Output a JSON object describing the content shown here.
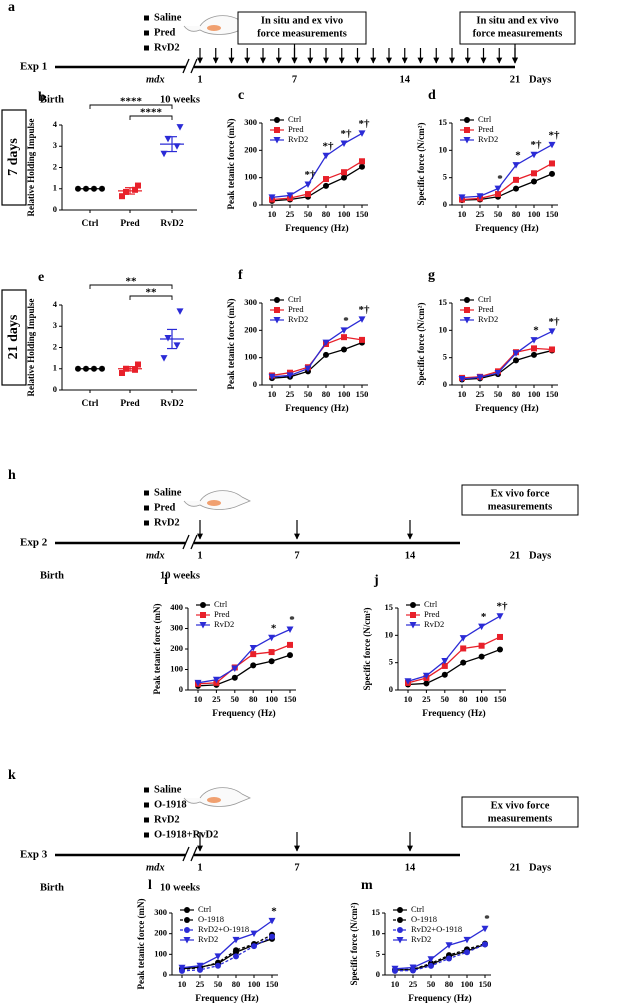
{
  "side_labels": [
    "7 days",
    "21 days"
  ],
  "timelines": [
    {
      "label": "a",
      "treatments": [
        "Saline",
        "Pred",
        "RvD2"
      ],
      "experiment": "Exp 1",
      "strain": "mdx",
      "days": [
        "1",
        "7",
        "14",
        "21"
      ],
      "unit": "Days",
      "birth": "Birth",
      "age": "10 weeks",
      "boxes": [
        [
          "In situ and ex vivo",
          "force measurements"
        ],
        [
          "In situ and ex vivo",
          "force measurements"
        ]
      ]
    },
    {
      "label": "h",
      "treatments": [
        "Saline",
        "Pred",
        "RvD2"
      ],
      "experiment": "Exp 2",
      "strain": "mdx",
      "days": [
        "1",
        "7",
        "14",
        "21"
      ],
      "unit": "Days",
      "birth": "Birth",
      "age": "10 weeks",
      "boxes": [
        [
          "Ex vivo force",
          "measurements"
        ]
      ]
    },
    {
      "label": "k",
      "treatments": [
        "Saline",
        "O-1918",
        "RvD2",
        "O-1918+RvD2"
      ],
      "experiment": "Exp 3",
      "strain": "mdx",
      "days": [
        "1",
        "7",
        "14",
        "21"
      ],
      "unit": "Days",
      "birth": "Birth",
      "age": "10 weeks",
      "boxes": [
        [
          "Ex vivo force",
          "measurements"
        ]
      ]
    }
  ],
  "chart_data": [
    {
      "type": "dot",
      "label": "b",
      "ylabel": "Relative Holding Impulse",
      "categories": [
        "Ctrl",
        "Pred",
        "RvD2"
      ],
      "colors": [
        "#000000",
        "#e8202a",
        "#2b2bd6"
      ],
      "markers": [
        "circle",
        "square",
        "triangle-down"
      ],
      "points": [
        [
          1,
          1,
          1,
          1
        ],
        [
          0.65,
          0.95,
          0.85,
          1.15
        ],
        [
          2.65,
          3.0,
          3.35,
          3.9
        ]
      ],
      "mean": [
        1,
        0.9,
        3.1
      ],
      "sem": [
        0,
        0.15,
        0.35
      ],
      "ylim": [
        0,
        4
      ],
      "yticks": [
        0,
        1,
        2,
        3,
        4
      ],
      "significance": [
        "****",
        "****"
      ]
    },
    {
      "type": "line",
      "label": "c",
      "ylabel": "Peak tetanic force (mN)",
      "xlabel": "Frequency (Hz)",
      "categories": [
        "10",
        "25",
        "50",
        "80",
        "100",
        "150"
      ],
      "ylim": [
        0,
        300
      ],
      "yticks": [
        0,
        100,
        200,
        300
      ],
      "series": [
        {
          "name": "Ctrl",
          "color": "#000000",
          "marker": "circle",
          "values": [
            15,
            20,
            30,
            70,
            100,
            140
          ]
        },
        {
          "name": "Pred",
          "color": "#e8202a",
          "marker": "square",
          "values": [
            20,
            25,
            40,
            95,
            120,
            160
          ]
        },
        {
          "name": "RvD2",
          "color": "#2b2bd6",
          "marker": "triangle-down",
          "values": [
            28,
            35,
            75,
            180,
            225,
            262
          ]
        }
      ],
      "annotations": [
        null,
        null,
        "*†",
        "*†",
        "*†",
        "*†"
      ]
    },
    {
      "type": "line",
      "label": "d",
      "ylabel": "Specific force (N/cm²)",
      "xlabel": "Frequency (Hz)",
      "categories": [
        "10",
        "25",
        "50",
        "80",
        "100",
        "150"
      ],
      "ylim": [
        0,
        15
      ],
      "yticks": [
        0,
        5,
        10,
        15
      ],
      "series": [
        {
          "name": "Ctrl",
          "color": "#000000",
          "marker": "circle",
          "values": [
            0.9,
            1,
            1.5,
            3,
            4.3,
            5.7
          ]
        },
        {
          "name": "Pred",
          "color": "#e8202a",
          "marker": "square",
          "values": [
            1,
            1.2,
            2,
            4.6,
            5.8,
            7.6
          ]
        },
        {
          "name": "RvD2",
          "color": "#2b2bd6",
          "marker": "triangle-down",
          "values": [
            1.4,
            1.6,
            3,
            7.3,
            9.2,
            11
          ]
        }
      ],
      "annotations": [
        null,
        null,
        "*",
        "*",
        "*†",
        "*†"
      ]
    },
    {
      "type": "dot",
      "label": "e",
      "ylabel": "Relative Holding Impulse",
      "categories": [
        "Ctrl",
        "Pred",
        "RvD2"
      ],
      "colors": [
        "#000000",
        "#e8202a",
        "#2b2bd6"
      ],
      "markers": [
        "circle",
        "square",
        "triangle-down"
      ],
      "points": [
        [
          1,
          1,
          1,
          1
        ],
        [
          0.8,
          0.95,
          1.0,
          1.2
        ],
        [
          1.5,
          2.1,
          2.45,
          3.7
        ]
      ],
      "mean": [
        1,
        1.0,
        2.4
      ],
      "sem": [
        0,
        0.1,
        0.45
      ],
      "ylim": [
        0,
        4
      ],
      "yticks": [
        0,
        1,
        2,
        3,
        4
      ],
      "significance": [
        "**",
        "**"
      ]
    },
    {
      "type": "line",
      "label": "f",
      "ylabel": "Peak tetanic force (mN)",
      "xlabel": "Frequency (Hz)",
      "categories": [
        "10",
        "25",
        "50",
        "80",
        "100",
        "150"
      ],
      "ylim": [
        0,
        300
      ],
      "yticks": [
        0,
        100,
        200,
        300
      ],
      "series": [
        {
          "name": "Ctrl",
          "color": "#000000",
          "marker": "circle",
          "values": [
            25,
            30,
            50,
            110,
            130,
            155
          ]
        },
        {
          "name": "Pred",
          "color": "#e8202a",
          "marker": "square",
          "values": [
            35,
            45,
            65,
            150,
            175,
            165
          ]
        },
        {
          "name": "RvD2",
          "color": "#2b2bd6",
          "marker": "triangle-down",
          "values": [
            30,
            35,
            60,
            155,
            200,
            240
          ]
        }
      ],
      "annotations": [
        null,
        null,
        null,
        null,
        "*",
        "*†"
      ]
    },
    {
      "type": "line",
      "label": "g",
      "ylabel": "Specific force (N/cm²)",
      "xlabel": "Frequency (Hz)",
      "categories": [
        "10",
        "25",
        "50",
        "80",
        "100",
        "150"
      ],
      "ylim": [
        0,
        15
      ],
      "yticks": [
        0,
        5,
        10,
        15
      ],
      "series": [
        {
          "name": "Ctrl",
          "color": "#000000",
          "marker": "circle",
          "values": [
            1,
            1.2,
            2,
            4.5,
            5.5,
            6.3
          ]
        },
        {
          "name": "Pred",
          "color": "#e8202a",
          "marker": "square",
          "values": [
            1.3,
            1.5,
            2.5,
            6,
            6.7,
            6.5
          ]
        },
        {
          "name": "RvD2",
          "color": "#2b2bd6",
          "marker": "triangle-down",
          "values": [
            1.1,
            1.4,
            2.2,
            5.8,
            8.2,
            9.8
          ]
        }
      ],
      "annotations": [
        null,
        null,
        null,
        null,
        "*",
        "*†"
      ]
    },
    {
      "type": "line",
      "label": "i",
      "ylabel": "Peak tetanic force (mN)",
      "xlabel": "Frequency (Hz)",
      "categories": [
        "10",
        "25",
        "50",
        "80",
        "100",
        "150"
      ],
      "ylim": [
        0,
        400
      ],
      "yticks": [
        0,
        100,
        200,
        300,
        400
      ],
      "series": [
        {
          "name": "Ctrl",
          "color": "#000000",
          "marker": "circle",
          "values": [
            20,
            25,
            60,
            120,
            140,
            170
          ]
        },
        {
          "name": "Pred",
          "color": "#e8202a",
          "marker": "square",
          "values": [
            30,
            35,
            110,
            175,
            185,
            220
          ]
        },
        {
          "name": "RvD2",
          "color": "#2b2bd6",
          "marker": "triangle-down",
          "values": [
            35,
            50,
            105,
            205,
            255,
            295
          ]
        }
      ],
      "annotations": [
        null,
        null,
        null,
        null,
        "*",
        "*"
      ]
    },
    {
      "type": "line",
      "label": "j",
      "ylabel": "Specific force (N/cm²)",
      "xlabel": "Frequency (Hz)",
      "categories": [
        "10",
        "25",
        "50",
        "80",
        "100",
        "150"
      ],
      "ylim": [
        0,
        15
      ],
      "yticks": [
        0,
        5,
        10,
        15
      ],
      "series": [
        {
          "name": "Ctrl",
          "color": "#000000",
          "marker": "circle",
          "values": [
            1,
            1.2,
            2.8,
            5,
            6.1,
            7.4
          ]
        },
        {
          "name": "Pred",
          "color": "#e8202a",
          "marker": "square",
          "values": [
            1.3,
            2.2,
            4.4,
            7.6,
            8.1,
            9.7
          ]
        },
        {
          "name": "RvD2",
          "color": "#2b2bd6",
          "marker": "triangle-down",
          "values": [
            1.6,
            2.6,
            5.3,
            9.5,
            11.6,
            13.5
          ]
        }
      ],
      "annotations": [
        null,
        null,
        null,
        null,
        "*",
        "*†"
      ]
    },
    {
      "type": "line",
      "label": "l",
      "ylabel": "Peak tetanic force (mN)",
      "xlabel": "Frequency (Hz)",
      "categories": [
        "10",
        "25",
        "50",
        "80",
        "100",
        "150"
      ],
      "ylim": [
        0,
        300
      ],
      "yticks": [
        0,
        100,
        200,
        300
      ],
      "series": [
        {
          "name": "Ctrl",
          "color": "#000000",
          "marker": "circle",
          "values": [
            30,
            38,
            55,
            110,
            145,
            175
          ]
        },
        {
          "name": "O-1918",
          "color": "#000000",
          "marker": "circle",
          "dash": true,
          "values": [
            28,
            35,
            60,
            120,
            150,
            195
          ]
        },
        {
          "name": "RvD2+O-1918",
          "color": "#2b2bd6",
          "marker": "circle",
          "dash": true,
          "values": [
            20,
            25,
            45,
            90,
            140,
            185
          ]
        },
        {
          "name": "RvD2",
          "color": "#2b2bd6",
          "marker": "triangle-down",
          "values": [
            35,
            45,
            90,
            170,
            200,
            262
          ]
        }
      ],
      "annotations": [
        null,
        null,
        null,
        null,
        null,
        "*"
      ]
    },
    {
      "type": "line",
      "label": "m",
      "ylabel": "Specific force (N/cm²)",
      "xlabel": "Frequency (Hz)",
      "categories": [
        "10",
        "25",
        "50",
        "80",
        "100",
        "150"
      ],
      "ylim": [
        0,
        15
      ],
      "yticks": [
        0,
        5,
        10,
        15
      ],
      "series": [
        {
          "name": "Ctrl",
          "color": "#000000",
          "marker": "circle",
          "values": [
            1.2,
            1.3,
            2.5,
            4.5,
            5.8,
            7.4
          ]
        },
        {
          "name": "O-1918",
          "color": "#000000",
          "marker": "circle",
          "dash": true,
          "values": [
            1.2,
            1.4,
            2.8,
            4.8,
            6.2,
            7.6
          ]
        },
        {
          "name": "RvD2+O-1918",
          "color": "#2b2bd6",
          "marker": "circle",
          "dash": true,
          "values": [
            1,
            1.1,
            2.2,
            4,
            5.5,
            7.4
          ]
        },
        {
          "name": "RvD2",
          "color": "#2b2bd6",
          "marker": "triangle-down",
          "values": [
            1.5,
            1.8,
            3.8,
            7.2,
            8.5,
            11.2
          ]
        }
      ],
      "annotations": [
        null,
        null,
        null,
        null,
        null,
        "*"
      ]
    }
  ]
}
